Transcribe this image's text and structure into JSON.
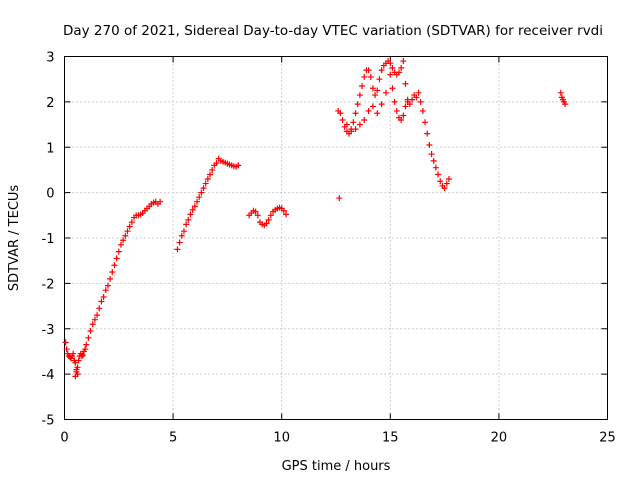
{
  "chart_data": {
    "type": "scatter",
    "title": "Day 270 of 2021, Sidereal Day-to-day VTEC variation (SDTVAR) for receiver rvdi",
    "xlabel": "GPS time / hours",
    "ylabel": "SDTVAR / TECUs",
    "xlim": [
      0,
      25
    ],
    "ylim": [
      -5,
      3
    ],
    "xticks": [
      "0",
      "5",
      "10",
      "15",
      "20",
      "25"
    ],
    "yticks": [
      "-5",
      "-4",
      "-3",
      "-2",
      "-1",
      "0",
      "1",
      "2",
      "3"
    ],
    "grid": true,
    "marker": "+",
    "marker_color": "#ff0000",
    "series": [
      {
        "x": [
          0.05,
          0.1,
          0.15,
          0.2,
          0.25,
          0.3,
          0.35,
          0.4,
          0.45,
          0.5,
          0.55,
          0.6,
          0.65,
          0.7,
          0.75,
          0.8,
          0.85,
          0.9,
          0.95,
          1.0,
          1.1,
          1.2,
          1.3,
          1.4,
          1.5,
          1.6,
          1.7,
          1.8,
          1.9,
          2.0,
          2.1,
          2.2,
          2.3,
          2.4,
          2.5,
          2.6,
          2.7,
          2.8,
          2.9,
          3.0,
          3.1,
          3.2,
          3.3,
          3.4,
          3.5,
          3.6,
          3.7,
          3.8,
          3.9,
          4.0,
          4.1,
          4.2,
          4.3,
          4.4,
          0.5,
          0.55,
          0.6
        ],
        "y": [
          -3.3,
          -3.45,
          -3.55,
          -3.6,
          -3.62,
          -3.65,
          -3.6,
          -3.55,
          -3.7,
          -3.75,
          -3.9,
          -3.85,
          -3.7,
          -3.6,
          -3.55,
          -3.6,
          -3.58,
          -3.5,
          -3.45,
          -3.35,
          -3.2,
          -3.05,
          -2.9,
          -2.8,
          -2.7,
          -2.55,
          -2.4,
          -2.3,
          -2.15,
          -2.05,
          -1.9,
          -1.75,
          -1.6,
          -1.45,
          -1.3,
          -1.15,
          -1.05,
          -0.95,
          -0.85,
          -0.75,
          -0.65,
          -0.55,
          -0.5,
          -0.5,
          -0.48,
          -0.45,
          -0.4,
          -0.35,
          -0.3,
          -0.25,
          -0.22,
          -0.2,
          -0.25,
          -0.2,
          -4.05,
          -3.95,
          -4.0
        ]
      },
      {
        "x": [
          5.2,
          5.3,
          5.4,
          5.5,
          5.6,
          5.7,
          5.8,
          5.9,
          6.0,
          6.1,
          6.2,
          6.3,
          6.4,
          6.5,
          6.6,
          6.7,
          6.8,
          6.9,
          7.0,
          7.1,
          7.2,
          7.3,
          7.4,
          7.5,
          7.6,
          7.7,
          7.8,
          7.9,
          8.0
        ],
        "y": [
          -1.25,
          -1.1,
          -0.95,
          -0.85,
          -0.7,
          -0.6,
          -0.48,
          -0.38,
          -0.3,
          -0.2,
          -0.1,
          0.0,
          0.1,
          0.2,
          0.3,
          0.4,
          0.5,
          0.6,
          0.65,
          0.75,
          0.7,
          0.68,
          0.66,
          0.64,
          0.62,
          0.6,
          0.58,
          0.57,
          0.6
        ]
      },
      {
        "x": [
          8.5,
          8.6,
          8.7,
          8.8,
          8.9,
          9.0,
          9.1,
          9.2,
          9.3,
          9.4,
          9.5,
          9.6,
          9.7,
          9.8,
          9.9,
          10.0,
          10.1,
          10.2
        ],
        "y": [
          -0.5,
          -0.45,
          -0.4,
          -0.42,
          -0.5,
          -0.65,
          -0.7,
          -0.72,
          -0.68,
          -0.6,
          -0.5,
          -0.42,
          -0.38,
          -0.35,
          -0.33,
          -0.35,
          -0.4,
          -0.48
        ]
      },
      {
        "x": [
          12.65
        ],
        "y": [
          -0.12
        ]
      },
      {
        "x": [
          12.6,
          12.7,
          12.8,
          12.9,
          13.0,
          13.1,
          13.2,
          13.3,
          13.4,
          13.5,
          13.6,
          13.7,
          13.8,
          13.9,
          14.0,
          14.1,
          14.2,
          14.3,
          14.4,
          14.5,
          14.6,
          14.7,
          14.8,
          14.9,
          15.0,
          15.1,
          15.2,
          15.3,
          15.4,
          15.5,
          15.6,
          15.7,
          15.8,
          15.9,
          16.0,
          16.1,
          16.2,
          16.3,
          16.4,
          16.5,
          16.6,
          16.7,
          16.8,
          16.9,
          17.0,
          17.1,
          17.2,
          17.3,
          17.4,
          17.5,
          17.6,
          17.7
        ],
        "y": [
          1.8,
          1.75,
          1.6,
          1.45,
          1.35,
          1.3,
          1.4,
          1.55,
          1.75,
          1.95,
          2.15,
          2.35,
          2.55,
          2.7,
          2.7,
          2.55,
          2.3,
          2.15,
          2.25,
          2.5,
          2.7,
          2.8,
          2.85,
          2.9,
          2.85,
          2.75,
          2.65,
          2.6,
          2.65,
          2.75,
          2.9,
          2.4,
          2.05,
          1.95,
          2.05,
          2.15,
          2.1,
          2.2,
          2.0,
          1.8,
          1.55,
          1.3,
          1.05,
          0.85,
          0.7,
          0.55,
          0.4,
          0.25,
          0.15,
          0.1,
          0.2,
          0.3
        ]
      },
      {
        "x": [
          13.0,
          13.2,
          13.4,
          13.6,
          13.8,
          14.0,
          14.2,
          14.4,
          14.6,
          14.8,
          15.0,
          15.1,
          15.2,
          15.3,
          15.4,
          15.5,
          15.6,
          15.7,
          15.8
        ],
        "y": [
          1.5,
          1.35,
          1.4,
          1.5,
          1.6,
          1.8,
          1.9,
          1.75,
          1.95,
          2.2,
          2.6,
          2.3,
          2.0,
          1.8,
          1.65,
          1.6,
          1.7,
          1.9,
          2.0
        ]
      },
      {
        "x": [
          22.85,
          22.9,
          22.95,
          23.0,
          23.05
        ],
        "y": [
          2.2,
          2.1,
          2.05,
          2.0,
          1.95
        ]
      }
    ]
  }
}
